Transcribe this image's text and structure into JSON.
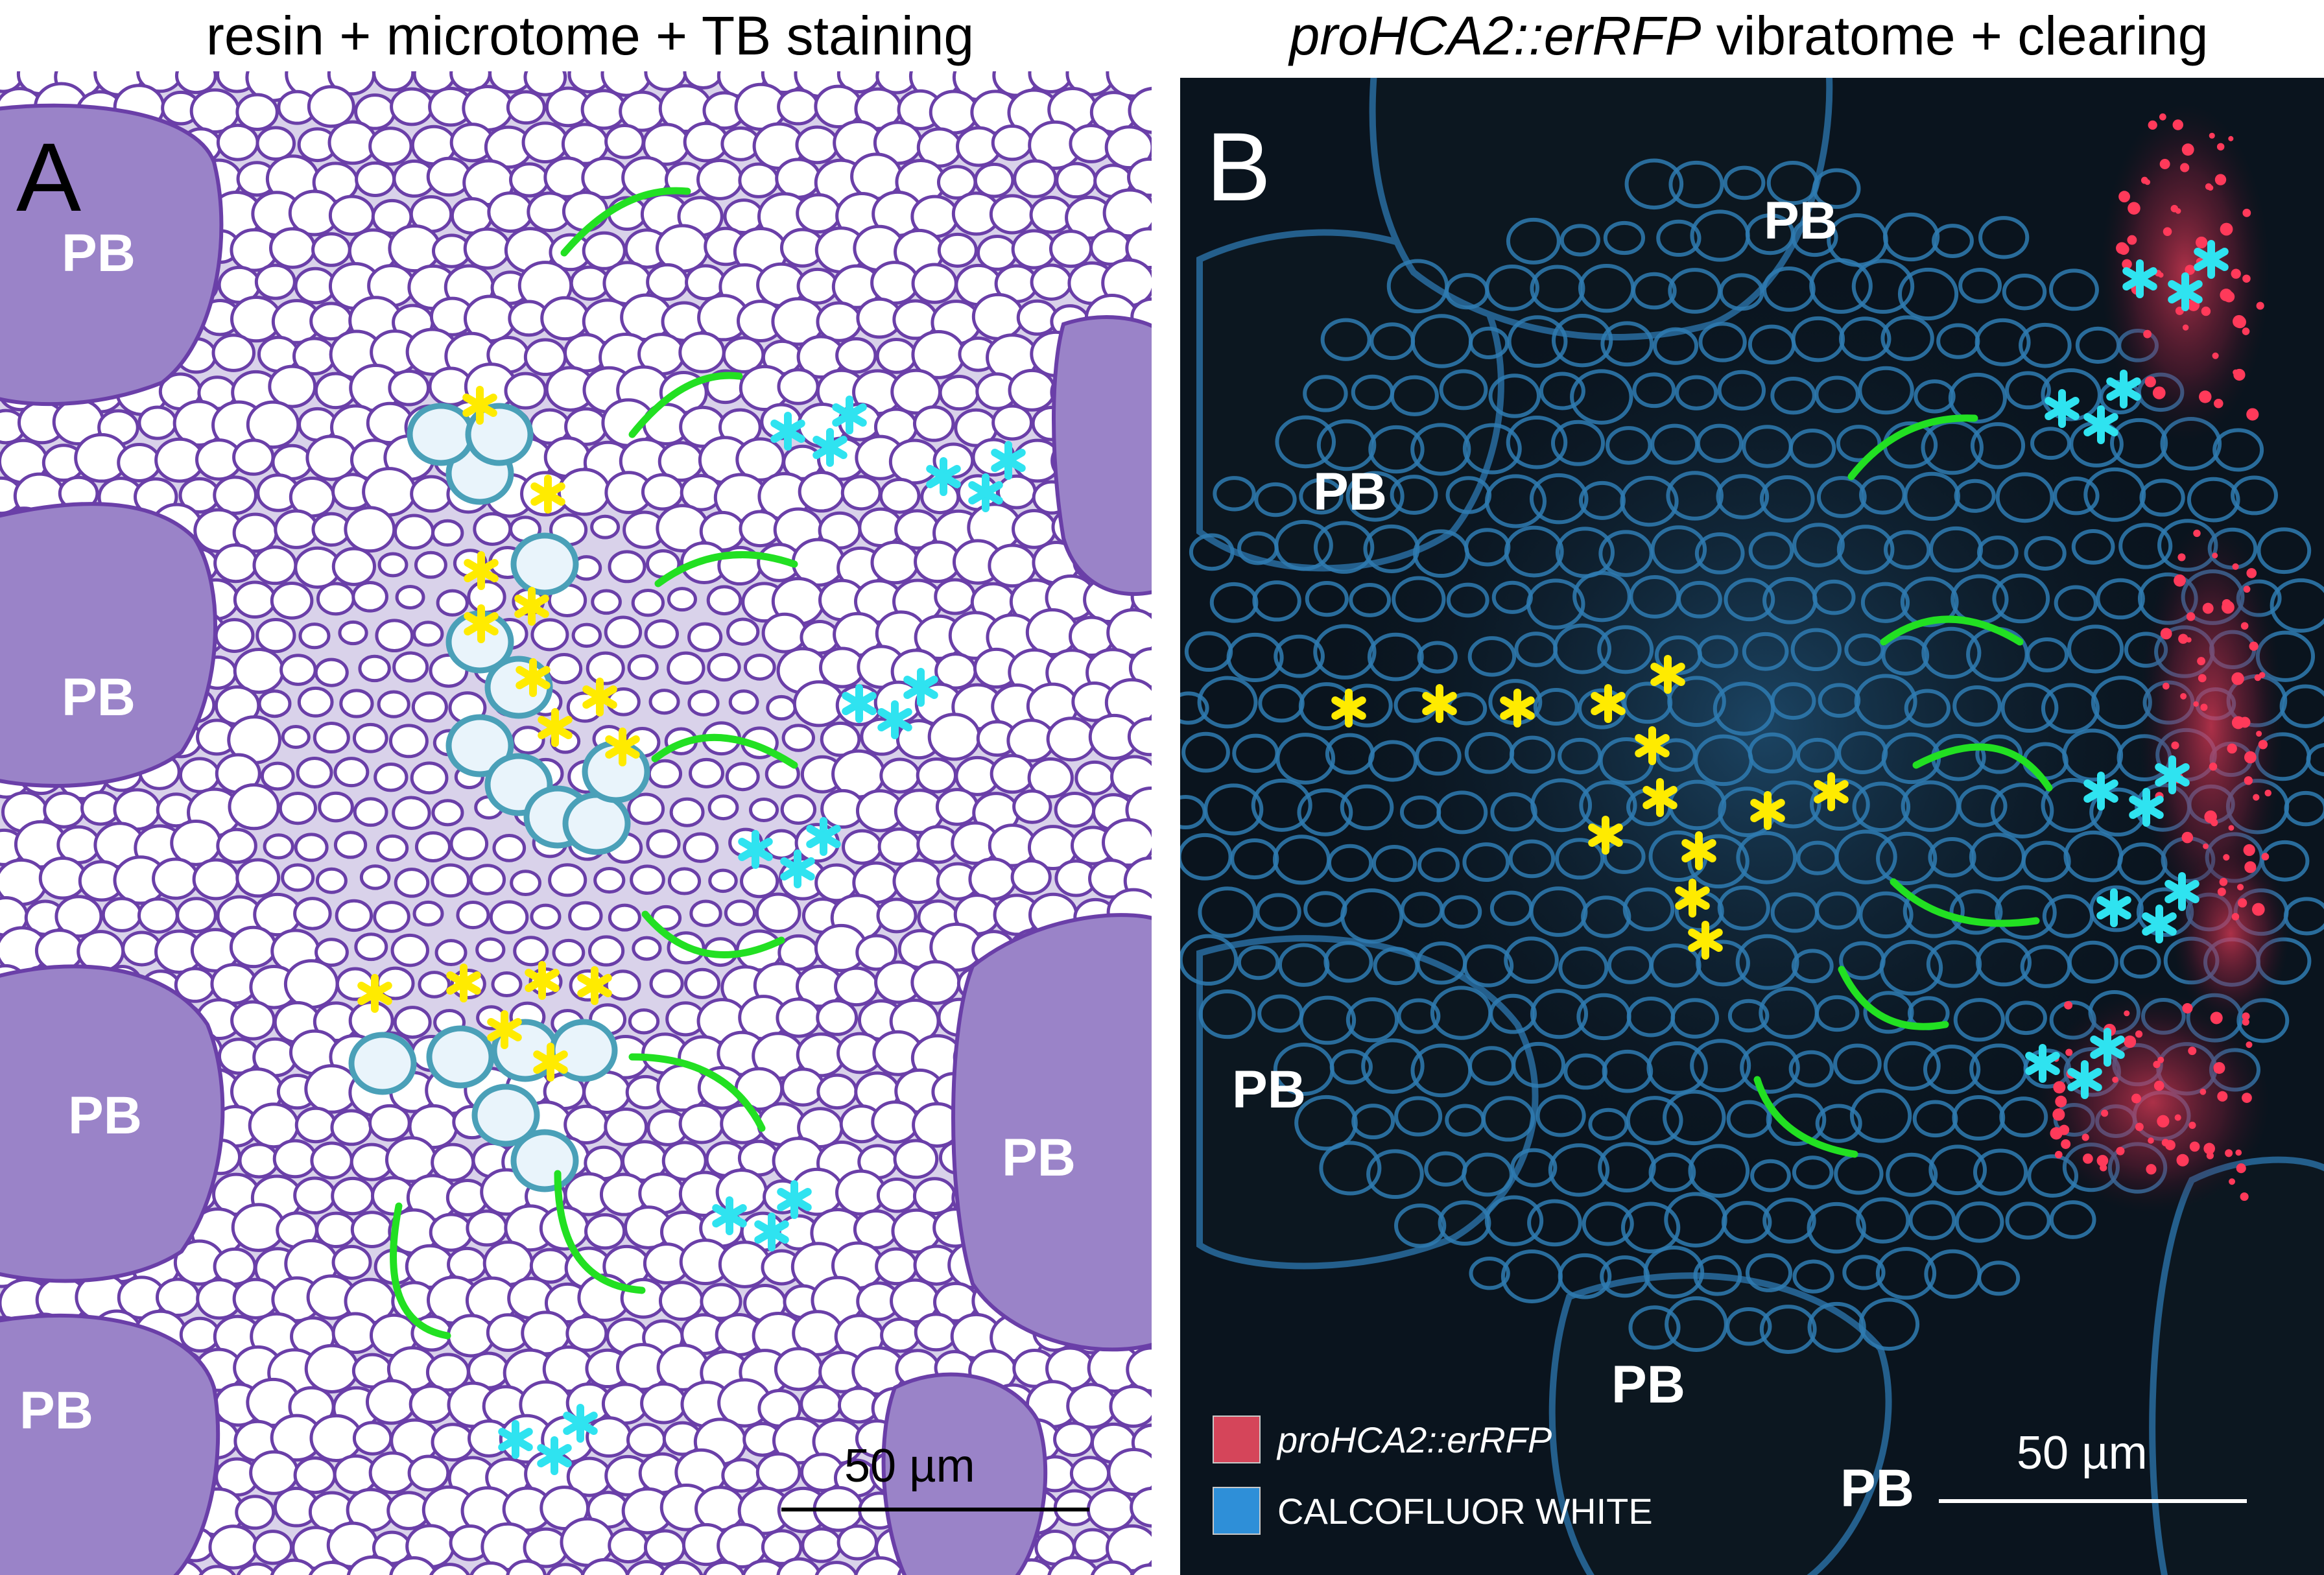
{
  "panel_a": {
    "title": "resin + microtome + TB staining",
    "letter": "A",
    "pb_labels": [
      "PB",
      "PB",
      "PB",
      "PB",
      "PB"
    ],
    "scale_label": "50 µm",
    "colors": {
      "tissue_bg": "#d9d2ea",
      "cell_wall": "#6a3fa8",
      "cell_lumen": "#ffffff",
      "xylem_wall": "#5fb0c8"
    }
  },
  "panel_b": {
    "title_italic": "proHCA2::erRFP",
    "title_rest": " vibratome + clearing",
    "letter": "B",
    "pb_labels": [
      "PB",
      "PB",
      "PB",
      "PB",
      "PB"
    ],
    "scale_label": "50 µm",
    "legend": [
      {
        "label": "proHCA2::erRFP",
        "color": "#d5455a"
      },
      {
        "label": "CALCOFLUOR WHITE",
        "color": "#2e8fd8"
      }
    ],
    "colors": {
      "background": "#0a141e",
      "cell_wall": "#2f7bb2",
      "rfp_signal": "#e23a56"
    }
  },
  "markers": {
    "yellow_asterisk": "#ffeb00",
    "cyan_asterisk": "#2fe3f0",
    "green_arc": "#22e022"
  }
}
